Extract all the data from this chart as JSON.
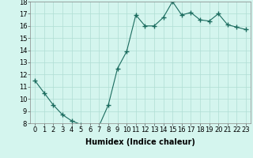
{
  "x": [
    0,
    1,
    2,
    3,
    4,
    5,
    6,
    7,
    8,
    9,
    10,
    11,
    12,
    13,
    14,
    15,
    16,
    17,
    18,
    19,
    20,
    21,
    22,
    23
  ],
  "y": [
    11.5,
    10.5,
    9.5,
    8.7,
    8.2,
    7.9,
    7.8,
    7.8,
    9.5,
    12.5,
    13.9,
    16.9,
    16.0,
    16.0,
    16.7,
    18.0,
    16.9,
    17.1,
    16.5,
    16.4,
    17.0,
    16.1,
    15.9,
    15.7
  ],
  "xlabel": "Humidex (Indice chaleur)",
  "ylim": [
    8,
    18
  ],
  "xlim": [
    -0.5,
    23.5
  ],
  "yticks": [
    8,
    9,
    10,
    11,
    12,
    13,
    14,
    15,
    16,
    17,
    18
  ],
  "xticks": [
    0,
    1,
    2,
    3,
    4,
    5,
    6,
    7,
    8,
    9,
    10,
    11,
    12,
    13,
    14,
    15,
    16,
    17,
    18,
    19,
    20,
    21,
    22,
    23
  ],
  "line_color": "#1a6b5e",
  "marker": "+",
  "bg_color": "#d4f5ee",
  "grid_color": "#b0ddd4",
  "xlabel_fontsize": 7,
  "tick_fontsize": 6
}
